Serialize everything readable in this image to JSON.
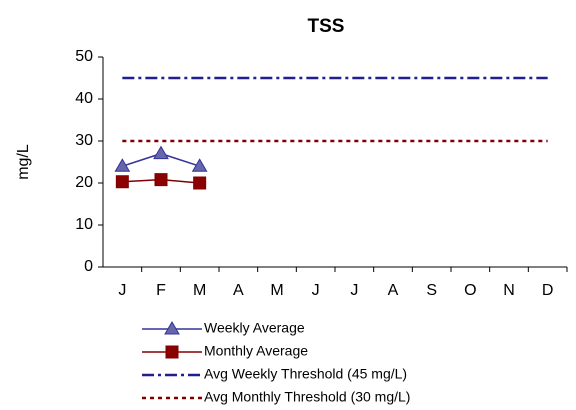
{
  "chart_data": {
    "type": "line",
    "title": "TSS",
    "y_label": "mg/L",
    "categories": [
      "J",
      "F",
      "M",
      "A",
      "M",
      "J",
      "J",
      "A",
      "S",
      "O",
      "N",
      "D"
    ],
    "ylim": [
      0,
      50
    ],
    "yticks": [
      0,
      10,
      20,
      30,
      40,
      50
    ],
    "series": [
      {
        "name": "Weekly Average",
        "color": "#333399",
        "marker": "triangle",
        "marker_color": "#6666aa",
        "line_style": "solid",
        "values": [
          24,
          27,
          24,
          null,
          null,
          null,
          null,
          null,
          null,
          null,
          null,
          null
        ]
      },
      {
        "name": "Monthly Average",
        "color": "#800000",
        "marker": "square",
        "marker_color": "#8b0000",
        "line_style": "solid",
        "values": [
          20.3,
          20.8,
          20,
          null,
          null,
          null,
          null,
          null,
          null,
          null,
          null,
          null
        ]
      },
      {
        "name": "Avg Weekly Threshold (45 mg/L)",
        "color": "#1f1f8f",
        "marker": "none",
        "line_style": "dashdot",
        "values": [
          45,
          45,
          45,
          45,
          45,
          45,
          45,
          45,
          45,
          45,
          45,
          45
        ]
      },
      {
        "name": "Avg Monthly Threshold (30 mg/L)",
        "color": "#800000",
        "marker": "none",
        "line_style": "dotted",
        "values": [
          30,
          30,
          30,
          30,
          30,
          30,
          30,
          30,
          30,
          30,
          30,
          30
        ]
      }
    ]
  }
}
